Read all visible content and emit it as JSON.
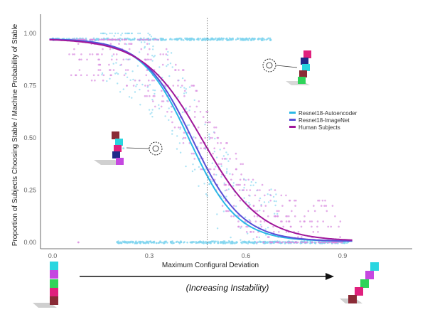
{
  "chart_data": {
    "type": "scatter",
    "title": "",
    "xlabel": "Maximum Configural Deviation",
    "ylabel": "Proportion of Subjects Choosing Stable / Machine Probability of Stable",
    "xlim": [
      -0.05,
      1.15
    ],
    "ylim": [
      -0.03,
      1.05
    ],
    "x_ticks": [
      0.0,
      0.3,
      0.6,
      0.9
    ],
    "x_tick_labels": [
      "0.0",
      "0.3",
      "0.6",
      "0.9"
    ],
    "y_ticks": [
      0.0,
      0.25,
      0.5,
      0.75,
      1.0
    ],
    "y_tick_labels": [
      "0.00",
      "0.25",
      "0.50",
      "0.75",
      "1.00"
    ],
    "threshold_x": 0.48,
    "legend_position": "right-middle",
    "series": [
      {
        "name": "Resnet18-Autoencoder",
        "color": "#2ab8e6",
        "x0": 0.425,
        "k": 13.5
      },
      {
        "name": "Resnet18-ImageNet",
        "color": "#5a4fd6",
        "x0": 0.435,
        "k": 13.0
      },
      {
        "name": "Human Subjects",
        "color": "#a0179a",
        "x0": 0.465,
        "k": 11.0
      }
    ],
    "point_colors": {
      "autoencoder": "#7fd4ef",
      "human": "#d98ae0"
    },
    "annotation": "(Increasing Instability)"
  }
}
